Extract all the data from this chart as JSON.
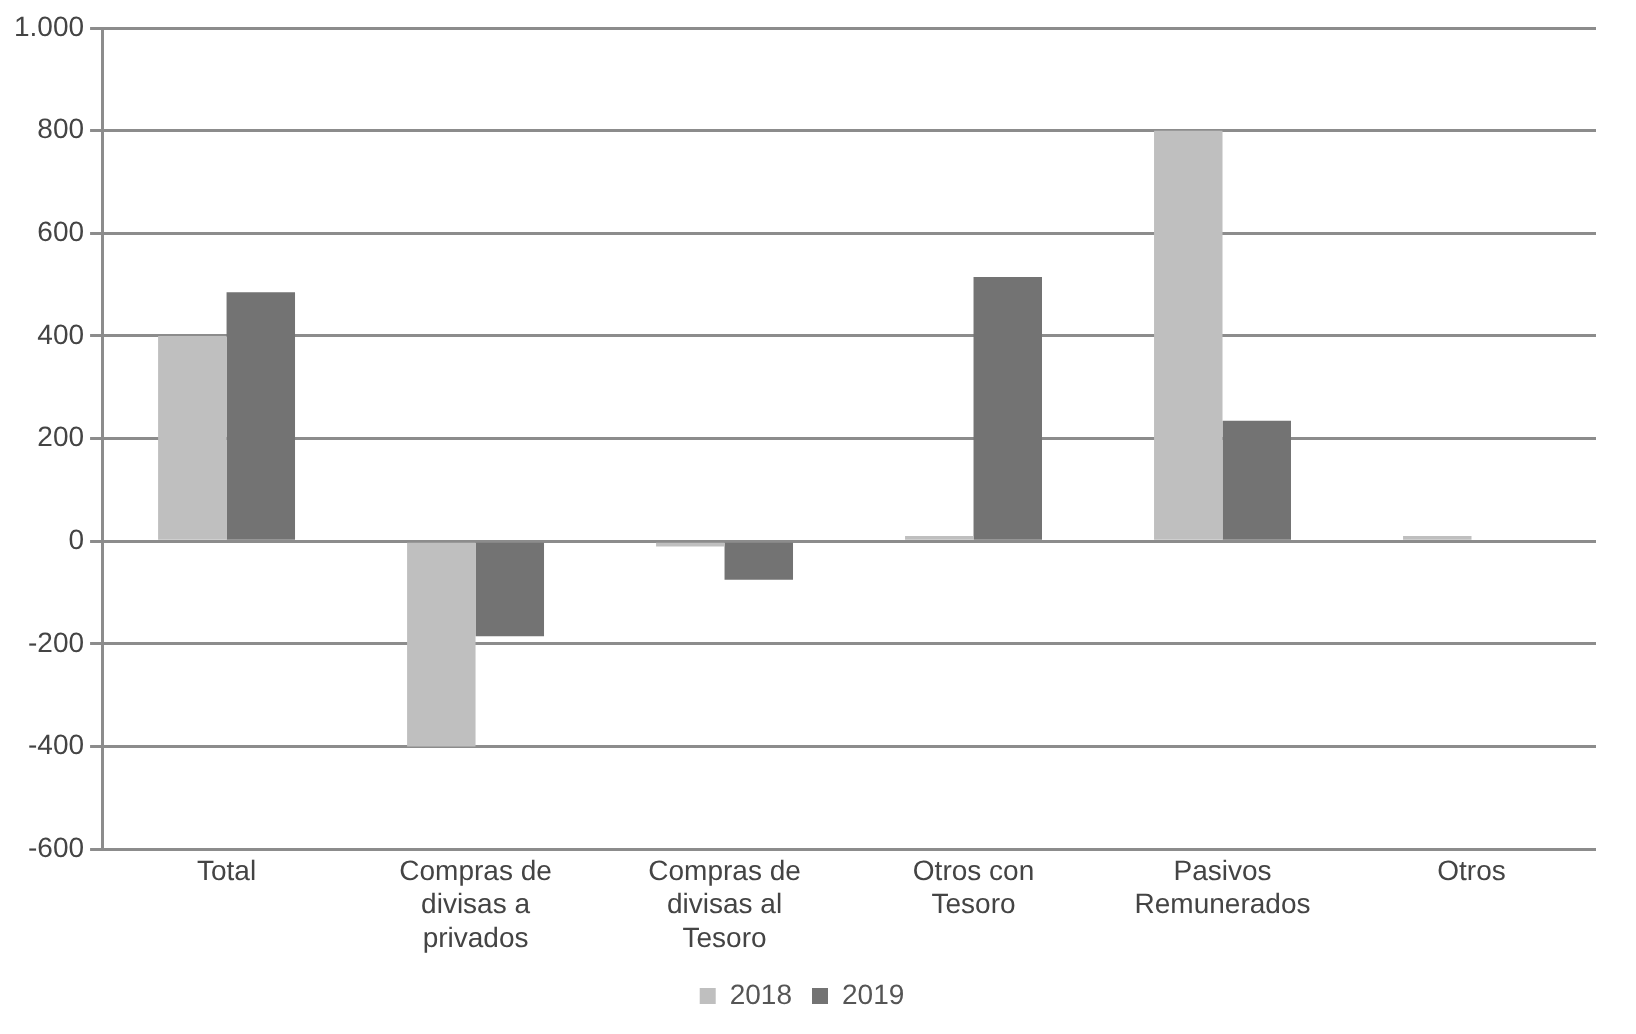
{
  "chart_data": {
    "type": "bar",
    "categories": [
      "Total",
      "Compras de divisas a privados",
      "Compras de divisas al Tesoro",
      "Otros con Tesoro",
      "Pasivos Remunerados",
      "Otros"
    ],
    "series": [
      {
        "name": "2018",
        "color": "#bfbfbf",
        "values": [
          400,
          -400,
          -10,
          10,
          800,
          10
        ]
      },
      {
        "name": "2019",
        "color": "#737373",
        "values": [
          485,
          -185,
          -75,
          515,
          235,
          0
        ]
      }
    ],
    "ylim": [
      -600,
      1000
    ],
    "yticks": [
      -600,
      -400,
      -200,
      0,
      200,
      400,
      600,
      800,
      {
        "value": 1000,
        "label": "1.000"
      }
    ],
    "grid": "y",
    "legend": "bottom"
  }
}
